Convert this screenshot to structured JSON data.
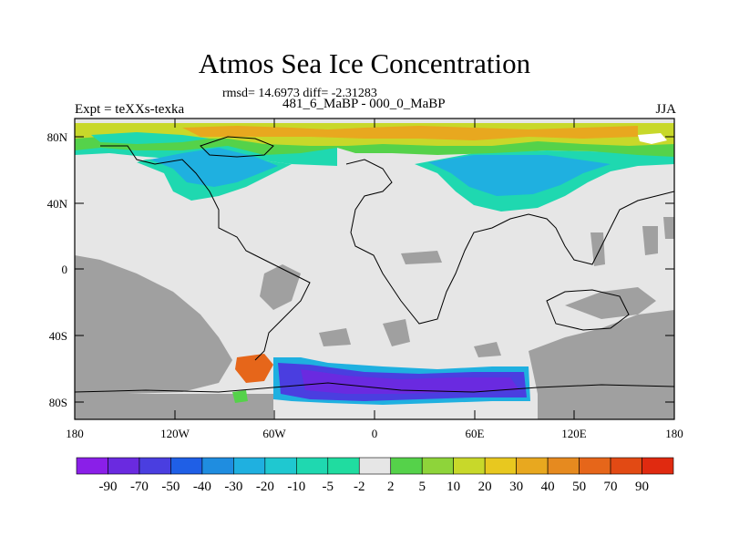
{
  "header": {
    "title": "Atmos Sea Ice Concentration",
    "stats": "rmsd= 14.6973 diff= -2.31283",
    "left_label": "Expt = teXXs-texka",
    "center_label": "481_6_MaBP - 000_0_MaBP",
    "right_label": "JJA"
  },
  "axes": {
    "x_ticks": [
      "180",
      "120W",
      "60W",
      "0",
      "60E",
      "120E",
      "180"
    ],
    "y_ticks": [
      "80N",
      "40N",
      "0",
      "40S",
      "80S"
    ]
  },
  "colorbar": {
    "labels": [
      "-90",
      "-70",
      "-50",
      "-40",
      "-30",
      "-20",
      "-10",
      "-5",
      "-2",
      "2",
      "5",
      "10",
      "20",
      "30",
      "40",
      "50",
      "70",
      "90"
    ],
    "colors": [
      "#8a1fe8",
      "#6a2ae0",
      "#4a3ee0",
      "#1f5fe6",
      "#1f8de0",
      "#1fb0e0",
      "#1fc8d0",
      "#1fd8b0",
      "#20dca0",
      "#e6e6e6",
      "#55d24a",
      "#8ed43a",
      "#c8d82a",
      "#e8c81f",
      "#e8a81f",
      "#e68a1f",
      "#e6661a",
      "#e24a14",
      "#e02a10"
    ]
  },
  "colors": {
    "land_gray": "#a0a0a0",
    "light_gray": "#e6e6e6"
  }
}
